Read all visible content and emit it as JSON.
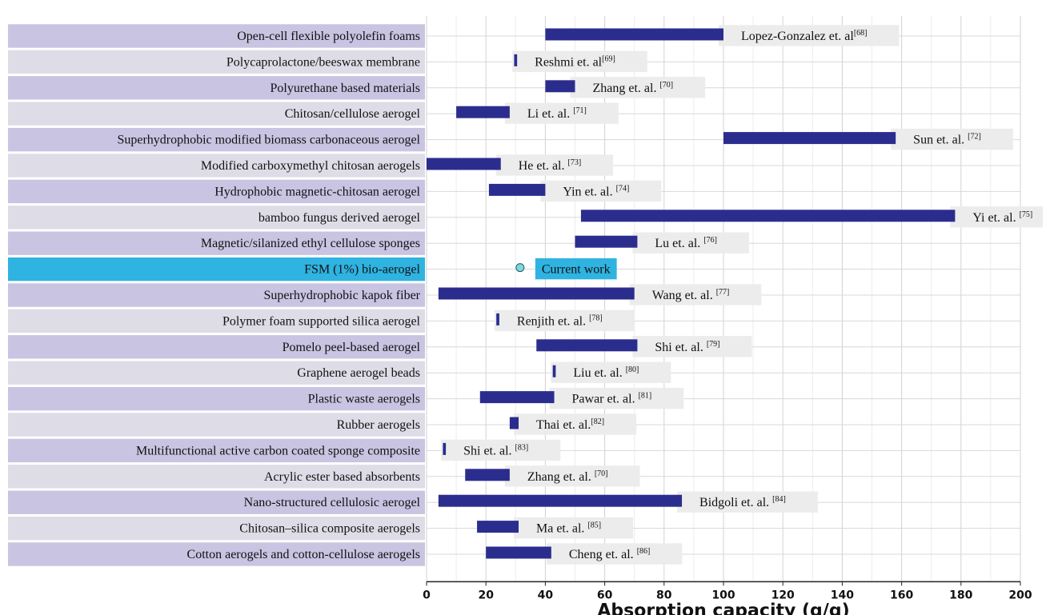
{
  "chart_data": {
    "type": "bar",
    "subtype": "floating-range-bar",
    "xlabel": "Absorption capacity (g/g)",
    "xlim": [
      0,
      200
    ],
    "xticks": [
      0,
      20,
      40,
      60,
      80,
      100,
      120,
      140,
      160,
      180,
      200
    ],
    "grid": true,
    "colors": {
      "bar": "#2b2d8e",
      "label_band_a": "#c9c4e2",
      "label_band_b": "#dedde7",
      "highlight_band": "#2fb3e0",
      "ref_box": "#ececec",
      "current_marker": "#7fd7d9"
    },
    "rows": [
      {
        "category": "Open-cell flexible polyolefin foams",
        "range": [
          40,
          100
        ],
        "ref": "Lopez-Gonzalez et. al",
        "ref_sup": "[68]"
      },
      {
        "category": "Polycaprolactone/beeswax membrane",
        "range": [
          29.5,
          30.5
        ],
        "ref": "Reshmi et. al",
        "ref_sup": "[69]"
      },
      {
        "category": "Polyurethane based materials",
        "range": [
          40,
          50
        ],
        "ref": "Zhang et. al. ",
        "ref_sup": "[70]"
      },
      {
        "category": "Chitosan/cellulose aerogel",
        "range": [
          10,
          28
        ],
        "ref": "Li et. al. ",
        "ref_sup": "[71]"
      },
      {
        "category": "Superhydrophobic modified biomass carbonaceous aerogel",
        "range": [
          100,
          158
        ],
        "ref": "Sun et. al. ",
        "ref_sup": "[72]"
      },
      {
        "category": "Modified carboxymethyl chitosan aerogels",
        "range": [
          0,
          25
        ],
        "ref": "He et. al. ",
        "ref_sup": "[73]"
      },
      {
        "category": "Hydrophobic magnetic-chitosan aerogel",
        "range": [
          21,
          40
        ],
        "ref": "Yin et. al. ",
        "ref_sup": "[74]"
      },
      {
        "category": "bamboo fungus derived aerogel",
        "range": [
          52,
          178
        ],
        "ref": "Yi et. al. ",
        "ref_sup": "[75]"
      },
      {
        "category": "Magnetic/silanized ethyl cellulose sponges",
        "range": [
          50,
          71
        ],
        "ref": "Lu et. al. ",
        "ref_sup": "[76]"
      },
      {
        "category": "FSM (1%) bio-aerogel",
        "point": 31.5,
        "ref": "Current work",
        "ref_sup": "",
        "highlight": true
      },
      {
        "category": "Superhydrophobic kapok fiber",
        "range": [
          4,
          70
        ],
        "ref": "Wang et. al. ",
        "ref_sup": "[77]"
      },
      {
        "category": "Polymer foam supported silica aerogel",
        "range": [
          23.5,
          24.5
        ],
        "ref": "Renjith et. al. ",
        "ref_sup": "[78]"
      },
      {
        "category": "Pomelo peel-based aerogel",
        "range": [
          37,
          71
        ],
        "ref": "Shi et. al. ",
        "ref_sup": "[79]"
      },
      {
        "category": "Graphene aerogel beads",
        "range": [
          42.5,
          43.5
        ],
        "ref": "Liu et. al. ",
        "ref_sup": "[80]"
      },
      {
        "category": "Plastic waste aerogels",
        "range": [
          18,
          43
        ],
        "ref": "Pawar et. al. ",
        "ref_sup": "[81]"
      },
      {
        "category": "Rubber aerogels",
        "range": [
          28,
          31
        ],
        "ref": "Thai et. al.",
        "ref_sup": "[82]"
      },
      {
        "category": "Multifunctional active carbon coated sponge composite",
        "range": [
          5.5,
          6.5
        ],
        "ref": "Shi et. al. ",
        "ref_sup": "[83]"
      },
      {
        "category": "Acrylic ester  based absorbents",
        "range": [
          13,
          28
        ],
        "ref": "Zhang et. al. ",
        "ref_sup": "[70]"
      },
      {
        "category": "Nano-structured cellulosic aerogel",
        "range": [
          4,
          86
        ],
        "ref": "Bidgoli et. al. ",
        "ref_sup": "[84]"
      },
      {
        "category": "Chitosan–silica composite aerogels",
        "range": [
          17,
          31
        ],
        "ref": "Ma et. al. ",
        "ref_sup": "[85]"
      },
      {
        "category": "Cotton aerogels and cotton-cellulose aerogels",
        "range": [
          20,
          42
        ],
        "ref": "Cheng et. al. ",
        "ref_sup": "[86]"
      }
    ]
  }
}
